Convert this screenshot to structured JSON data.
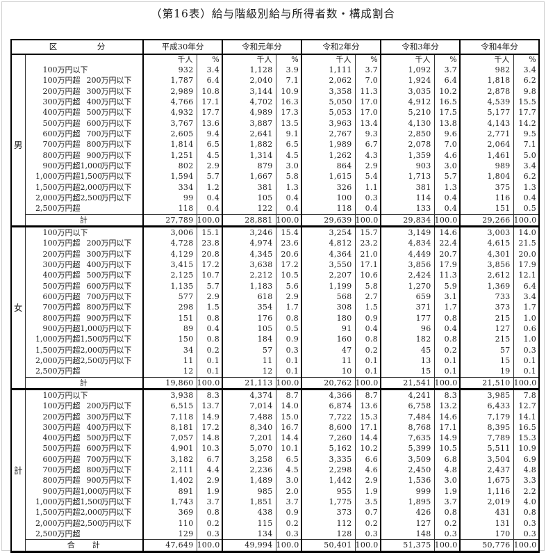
{
  "page": {
    "title": "（第16表）給与階級別給与所得者数・構成割合"
  },
  "table": {
    "corner_label": "区　　　　　分",
    "years": [
      "平成30年分",
      "令和元年分",
      "令和2年分",
      "令和3年分",
      "令和4年分"
    ],
    "unit_header": "千人",
    "percent_header": "%",
    "brackets": [
      {
        "n1": "100",
        "u1": "万円以下",
        "n2": "",
        "u2": ""
      },
      {
        "n1": "100",
        "u1": "万円超",
        "n2": "200",
        "u2": "万円以下"
      },
      {
        "n1": "200",
        "u1": "万円超",
        "n2": "300",
        "u2": "万円以下"
      },
      {
        "n1": "300",
        "u1": "万円超",
        "n2": "400",
        "u2": "万円以下"
      },
      {
        "n1": "400",
        "u1": "万円超",
        "n2": "500",
        "u2": "万円以下"
      },
      {
        "n1": "500",
        "u1": "万円超",
        "n2": "600",
        "u2": "万円以下"
      },
      {
        "n1": "600",
        "u1": "万円超",
        "n2": "700",
        "u2": "万円以下"
      },
      {
        "n1": "700",
        "u1": "万円超",
        "n2": "800",
        "u2": "万円以下"
      },
      {
        "n1": "800",
        "u1": "万円超",
        "n2": "900",
        "u2": "万円以下"
      },
      {
        "n1": "900",
        "u1": "万円超",
        "n2": "1,000",
        "u2": "万円以下"
      },
      {
        "n1": "1,000",
        "u1": "万円超",
        "n2": "1,500",
        "u2": "万円以下"
      },
      {
        "n1": "1,500",
        "u1": "万円超",
        "n2": "2,000",
        "u2": "万円以下"
      },
      {
        "n1": "2,000",
        "u1": "万円超",
        "n2": "2,500",
        "u2": "万円以下"
      },
      {
        "n1": "2,500",
        "u1": "万円超",
        "n2": "",
        "u2": ""
      }
    ],
    "sections": [
      {
        "group": "男",
        "total_label": "計",
        "rows": [
          [
            "932",
            "3.4",
            "1,128",
            "3.9",
            "1,111",
            "3.7",
            "1,092",
            "3.7",
            "982",
            "3.4"
          ],
          [
            "1,787",
            "6.4",
            "2,040",
            "7.1",
            "2,062",
            "7.0",
            "1,924",
            "6.4",
            "1,818",
            "6.2"
          ],
          [
            "2,989",
            "10.8",
            "3,144",
            "10.9",
            "3,358",
            "11.3",
            "3,035",
            "10.2",
            "2,878",
            "9.8"
          ],
          [
            "4,766",
            "17.1",
            "4,702",
            "16.3",
            "5,050",
            "17.0",
            "4,912",
            "16.5",
            "4,539",
            "15.5"
          ],
          [
            "4,932",
            "17.7",
            "4,989",
            "17.3",
            "5,053",
            "17.0",
            "5,210",
            "17.5",
            "5,177",
            "17.7"
          ],
          [
            "3,767",
            "13.6",
            "3,887",
            "13.5",
            "3,963",
            "13.4",
            "4,130",
            "13.8",
            "4,143",
            "14.2"
          ],
          [
            "2,605",
            "9.4",
            "2,641",
            "9.1",
            "2,767",
            "9.3",
            "2,850",
            "9.6",
            "2,771",
            "9.5"
          ],
          [
            "1,814",
            "6.5",
            "1,882",
            "6.5",
            "1,989",
            "6.7",
            "2,078",
            "7.0",
            "2,064",
            "7.1"
          ],
          [
            "1,251",
            "4.5",
            "1,314",
            "4.5",
            "1,262",
            "4.3",
            "1,359",
            "4.6",
            "1,461",
            "5.0"
          ],
          [
            "802",
            "2.9",
            "879",
            "3.0",
            "864",
            "2.9",
            "903",
            "3.0",
            "989",
            "3.4"
          ],
          [
            "1,594",
            "5.7",
            "1,667",
            "5.8",
            "1,615",
            "5.4",
            "1,713",
            "5.7",
            "1,804",
            "6.2"
          ],
          [
            "334",
            "1.2",
            "381",
            "1.3",
            "326",
            "1.1",
            "381",
            "1.3",
            "375",
            "1.3"
          ],
          [
            "99",
            "0.4",
            "105",
            "0.4",
            "100",
            "0.3",
            "114",
            "0.4",
            "116",
            "0.4"
          ],
          [
            "118",
            "0.4",
            "122",
            "0.4",
            "118",
            "0.4",
            "133",
            "0.4",
            "151",
            "0.5"
          ]
        ],
        "total": [
          "27,789",
          "100.0",
          "28,881",
          "100.0",
          "29,639",
          "100.0",
          "29,834",
          "100.0",
          "29,266",
          "100.0"
        ]
      },
      {
        "group": "女",
        "total_label": "計",
        "rows": [
          [
            "3,006",
            "15.1",
            "3,246",
            "15.4",
            "3,254",
            "15.7",
            "3,149",
            "14.6",
            "3,003",
            "14.0"
          ],
          [
            "4,728",
            "23.8",
            "4,974",
            "23.6",
            "4,812",
            "23.2",
            "4,834",
            "22.4",
            "4,615",
            "21.5"
          ],
          [
            "4,129",
            "20.8",
            "4,345",
            "20.6",
            "4,364",
            "21.0",
            "4,449",
            "20.7",
            "4,301",
            "20.0"
          ],
          [
            "3,415",
            "17.2",
            "3,638",
            "17.2",
            "3,550",
            "17.1",
            "3,856",
            "17.9",
            "3,856",
            "17.9"
          ],
          [
            "2,125",
            "10.7",
            "2,212",
            "10.5",
            "2,207",
            "10.6",
            "2,424",
            "11.3",
            "2,612",
            "12.1"
          ],
          [
            "1,135",
            "5.7",
            "1,183",
            "5.6",
            "1,199",
            "5.8",
            "1,270",
            "5.9",
            "1,369",
            "6.4"
          ],
          [
            "577",
            "2.9",
            "618",
            "2.9",
            "568",
            "2.7",
            "659",
            "3.1",
            "733",
            "3.4"
          ],
          [
            "298",
            "1.5",
            "354",
            "1.7",
            "308",
            "1.5",
            "371",
            "1.7",
            "373",
            "1.7"
          ],
          [
            "151",
            "0.8",
            "176",
            "0.8",
            "180",
            "0.9",
            "177",
            "0.8",
            "215",
            "1.0"
          ],
          [
            "89",
            "0.4",
            "105",
            "0.5",
            "91",
            "0.4",
            "96",
            "0.4",
            "127",
            "0.6"
          ],
          [
            "150",
            "0.8",
            "184",
            "0.9",
            "160",
            "0.8",
            "182",
            "0.8",
            "215",
            "1.0"
          ],
          [
            "34",
            "0.2",
            "57",
            "0.3",
            "47",
            "0.2",
            "45",
            "0.2",
            "57",
            "0.3"
          ],
          [
            "11",
            "0.1",
            "11",
            "0.1",
            "11",
            "0.1",
            "13",
            "0.1",
            "15",
            "0.1"
          ],
          [
            "12",
            "0.1",
            "12",
            "0.1",
            "10",
            "0.1",
            "15",
            "0.1",
            "19",
            "0.1"
          ]
        ],
        "total": [
          "19,860",
          "100.0",
          "21,113",
          "100.0",
          "20,762",
          "100.0",
          "21,541",
          "100.0",
          "21,510",
          "100.0"
        ]
      },
      {
        "group": "計",
        "total_label": "合　　計",
        "rows": [
          [
            "3,938",
            "8.3",
            "4,374",
            "8.7",
            "4,366",
            "8.7",
            "4,241",
            "8.3",
            "3,985",
            "7.8"
          ],
          [
            "6,515",
            "13.7",
            "7,014",
            "14.0",
            "6,874",
            "13.6",
            "6,758",
            "13.2",
            "6,433",
            "12.7"
          ],
          [
            "7,118",
            "14.9",
            "7,488",
            "15.0",
            "7,722",
            "15.3",
            "7,484",
            "14.6",
            "7,179",
            "14.1"
          ],
          [
            "8,181",
            "17.2",
            "8,340",
            "16.7",
            "8,600",
            "17.1",
            "8,768",
            "17.1",
            "8,395",
            "16.5"
          ],
          [
            "7,057",
            "14.8",
            "7,201",
            "14.4",
            "7,260",
            "14.4",
            "7,635",
            "14.9",
            "7,789",
            "15.3"
          ],
          [
            "4,901",
            "10.3",
            "5,070",
            "10.1",
            "5,162",
            "10.2",
            "5,399",
            "10.5",
            "5,511",
            "10.9"
          ],
          [
            "3,182",
            "6.7",
            "3,258",
            "6.5",
            "3,335",
            "6.6",
            "3,509",
            "6.8",
            "3,504",
            "6.9"
          ],
          [
            "2,111",
            "4.4",
            "2,236",
            "4.5",
            "2,298",
            "4.6",
            "2,450",
            "4.8",
            "2,437",
            "4.8"
          ],
          [
            "1,402",
            "2.9",
            "1,489",
            "3.0",
            "1,442",
            "2.9",
            "1,536",
            "3.0",
            "1,675",
            "3.3"
          ],
          [
            "891",
            "1.9",
            "985",
            "2.0",
            "955",
            "1.9",
            "999",
            "1.9",
            "1,116",
            "2.2"
          ],
          [
            "1,743",
            "3.7",
            "1,851",
            "3.7",
            "1,775",
            "3.5",
            "1,895",
            "3.7",
            "2,019",
            "4.0"
          ],
          [
            "369",
            "0.8",
            "438",
            "0.9",
            "373",
            "0.7",
            "426",
            "0.8",
            "431",
            "0.8"
          ],
          [
            "110",
            "0.2",
            "115",
            "0.2",
            "112",
            "0.2",
            "127",
            "0.2",
            "131",
            "0.3"
          ],
          [
            "129",
            "0.3",
            "134",
            "0.3",
            "128",
            "0.3",
            "148",
            "0.3",
            "170",
            "0.3"
          ]
        ],
        "total": [
          "47,649",
          "100.0",
          "49,994",
          "100.0",
          "50,401",
          "100.0",
          "51,375",
          "100.0",
          "50,776",
          "100.0"
        ]
      }
    ]
  }
}
